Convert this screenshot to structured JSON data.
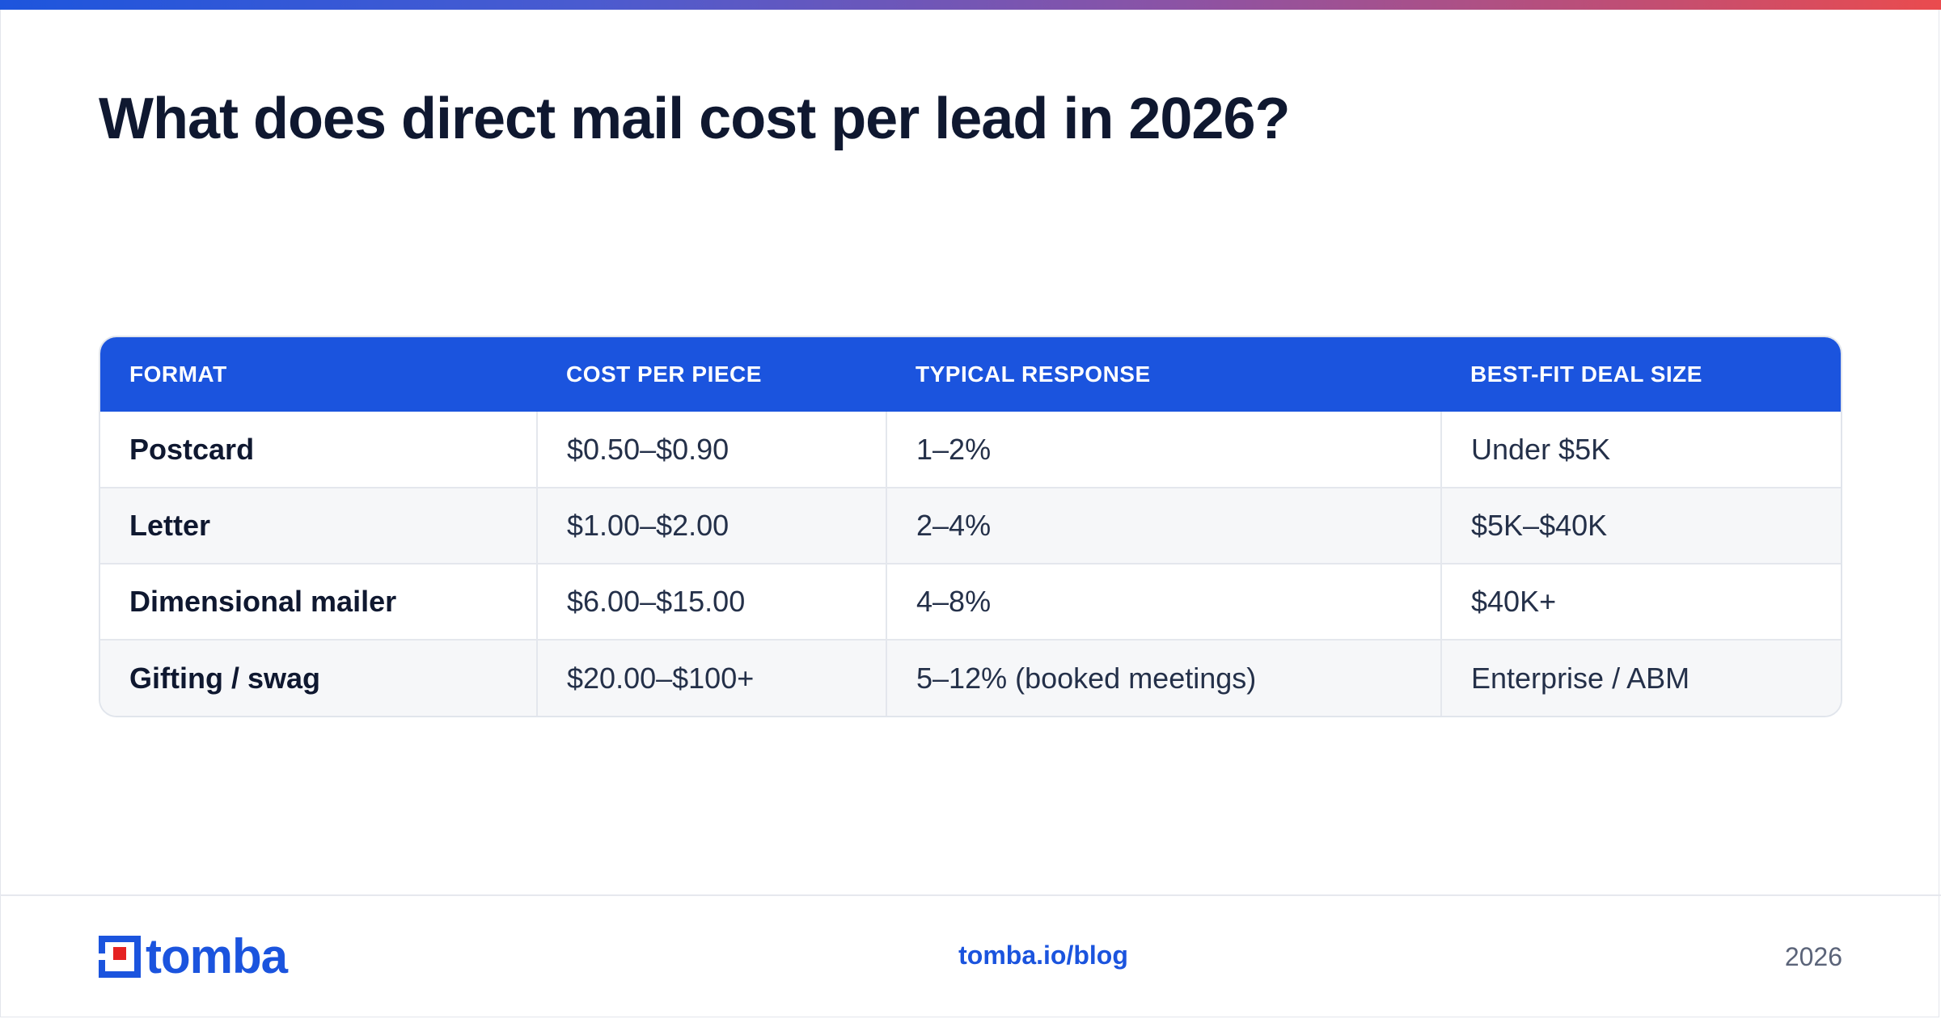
{
  "page": {
    "title": "What does direct mail cost per lead in 2026?"
  },
  "table": {
    "headers": [
      "FORMAT",
      "COST PER PIECE",
      "TYPICAL RESPONSE",
      "BEST-FIT DEAL SIZE"
    ],
    "rows": [
      [
        "Postcard",
        "$0.50–$0.90",
        "1–2%",
        "Under $5K"
      ],
      [
        "Letter",
        "$1.00–$2.00",
        "2–4%",
        "$5K–$40K"
      ],
      [
        "Dimensional mailer",
        "$6.00–$15.00",
        "4–8%",
        "$40K+"
      ],
      [
        "Gifting / swag",
        "$20.00–$100+",
        "5–12% (booked meetings)",
        "Enterprise / ABM"
      ]
    ]
  },
  "footer": {
    "brand": "tomba",
    "link": "tomba.io/blog",
    "year": "2026"
  },
  "colors": {
    "accent_blue": "#1b54de",
    "logo_red": "#e52222",
    "title": "#0f1830"
  }
}
